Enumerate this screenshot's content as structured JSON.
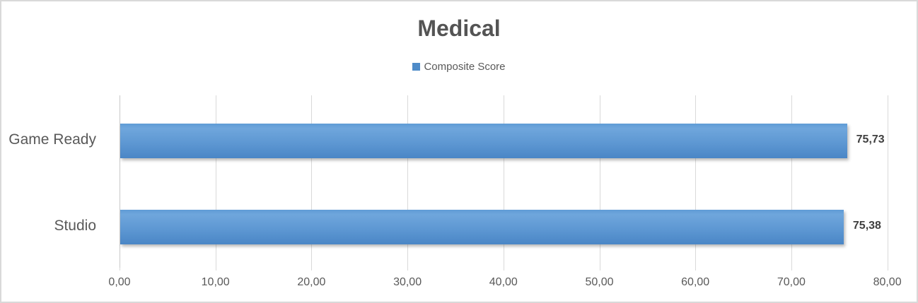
{
  "window": {
    "background": "#FFFFFF",
    "border_color": "#D9D9D9"
  },
  "chart_data": {
    "type": "bar",
    "orientation": "horizontal",
    "title": "Medical",
    "categories": [
      "Game Ready",
      "Studio"
    ],
    "series": [
      {
        "name": "Composite Score",
        "values": [
          75.73,
          75.38
        ],
        "value_labels": [
          "75,73",
          "75,38"
        ]
      }
    ],
    "xlabel": "",
    "ylabel": "",
    "xlim": [
      0,
      80
    ],
    "xtick_step": 10,
    "xtick_labels": [
      "0,00",
      "10,00",
      "20,00",
      "30,00",
      "40,00",
      "50,00",
      "60,00",
      "70,00",
      "80,00"
    ],
    "grid": true,
    "legend_position": "top-center",
    "colors": {
      "bar_top": "#6FA6DC",
      "bar_bottom": "#4A86C6",
      "legend_marker": "#4E8BC8",
      "gridline": "#D9D9D9",
      "axis_line": "#C9C9C9",
      "axis_text": "#595959",
      "title_text": "#545454",
      "value_label_text": "#3F3F3F"
    }
  }
}
